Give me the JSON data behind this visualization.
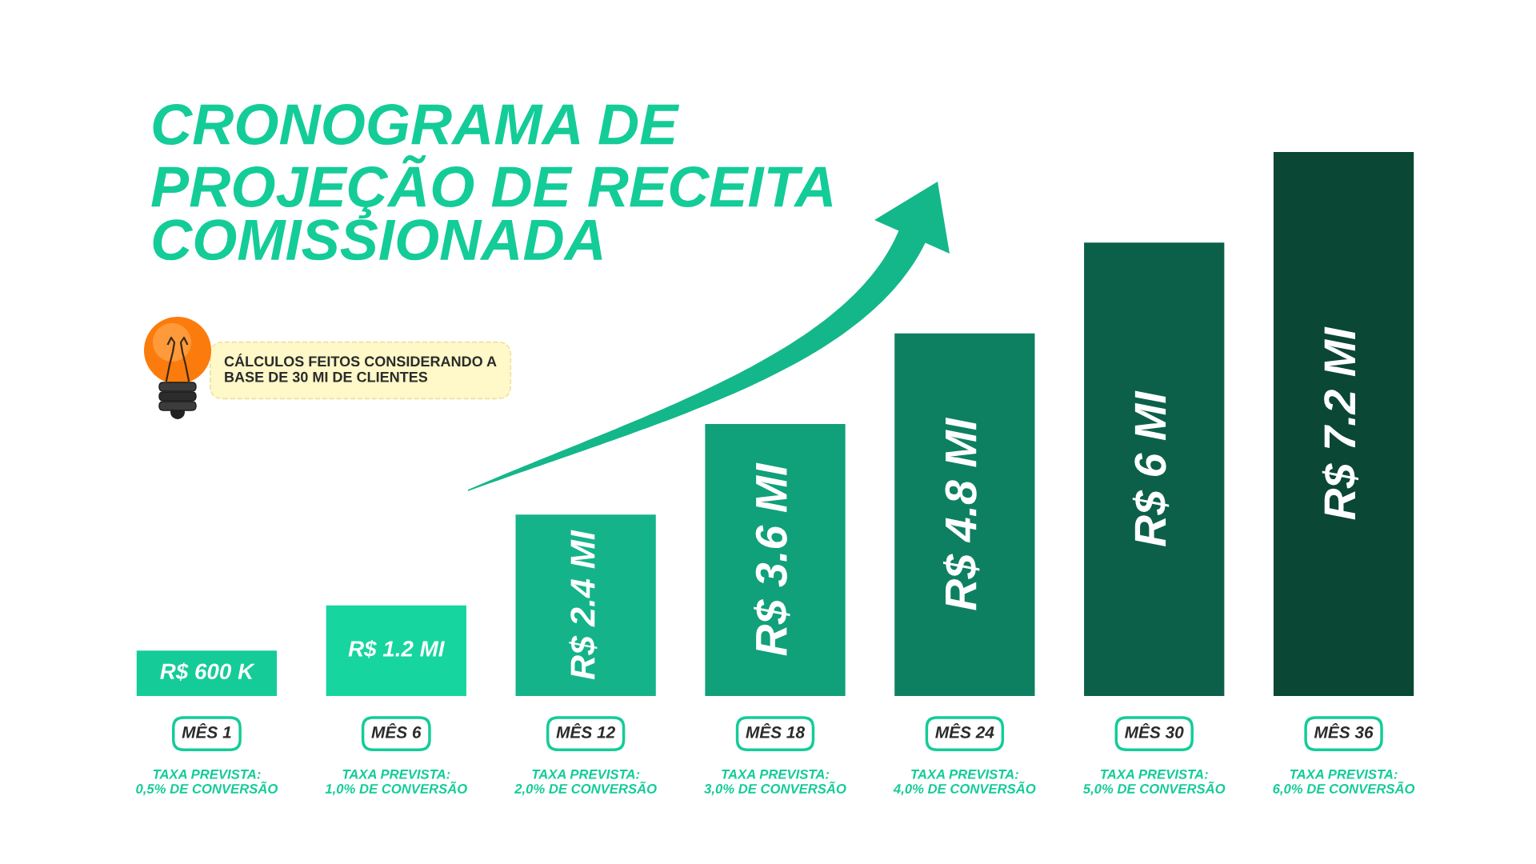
{
  "chart_data": {
    "type": "bar",
    "title": "CRONOGRAMA DE\nPROJEÇÃO DE RECEITA\nCOMISSIONADA",
    "categories": [
      "MÊS 1",
      "MÊS 6",
      "MÊS 12",
      "MÊS 18",
      "MÊS 24",
      "MÊS 30",
      "MÊS 36"
    ],
    "values": [
      0.6,
      1.2,
      2.4,
      3.6,
      4.8,
      6,
      7.2
    ],
    "value_labels": [
      "R$ 600 K",
      "R$ 1.2 MI",
      "R$ 2.4 MI",
      "R$ 3.6 MI",
      "R$ 4.8 MI",
      "R$ 6 MI",
      "R$ 7.2 MI"
    ],
    "colors": [
      "#15cc99",
      "#16d59f",
      "#15b389",
      "#10a07a",
      "#0e8062",
      "#0c6049",
      "#0a4735"
    ],
    "tick_labels": "x",
    "annotations": [
      "TAXA PREVISTA:\n0,5% DE CONVERSÃO",
      "TAXA PREVISTA:\n1,0% DE CONVERSÃO",
      "TAXA PREVISTA:\n2,0% DE CONVERSÃO",
      "TAXA PREVISTA:\n3,0% DE CONVERSÃO",
      "TAXA PREVISTA:\n4,0% DE CONVERSÃO",
      "TAXA PREVISTA:\n5,0% DE CONVERSÃO",
      "TAXA PREVISTA:\n6,0% DE CONVERSÃO",
      "CÁLCULOS FEITOS CONSIDERANDO A\nBASE DE 30 MI DE CLIENTES"
    ]
  }
}
